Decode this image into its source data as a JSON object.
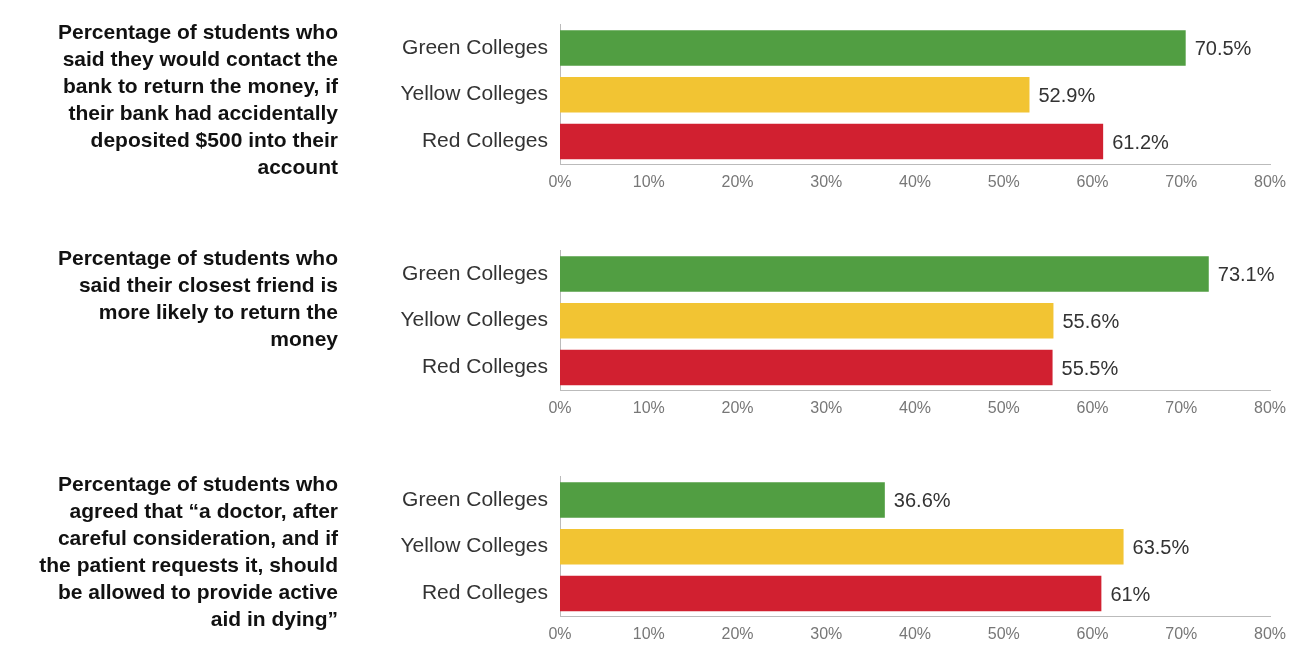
{
  "chart_data": [
    {
      "type": "bar",
      "orientation": "horizontal",
      "title": "Percentage of students who said they would contact the bank to return the money, if their bank had accidentally deposited $500 into their account",
      "categories": [
        "Green Colleges",
        "Yellow Colleges",
        "Red Colleges"
      ],
      "values": [
        70.5,
        52.9,
        61.2
      ],
      "colors": [
        "#519e42",
        "#f2c433",
        "#d12030"
      ],
      "value_labels": [
        "70.5%",
        "52.9%",
        "61.2%"
      ],
      "xlim": [
        0,
        80
      ],
      "xticks": [
        {
          "value": 0,
          "label": "0%"
        },
        {
          "value": 10,
          "label": "10%"
        },
        {
          "value": 20,
          "label": "20%"
        },
        {
          "value": 30,
          "label": "30%"
        },
        {
          "value": 40,
          "label": "40%"
        },
        {
          "value": 50,
          "label": "50%"
        },
        {
          "value": 60,
          "label": "60%"
        },
        {
          "value": 70,
          "label": "70%"
        },
        {
          "value": 80,
          "label": "80%"
        }
      ]
    },
    {
      "type": "bar",
      "orientation": "horizontal",
      "title": "Percentage of students who said their closest friend is more likely to return the money",
      "categories": [
        "Green Colleges",
        "Yellow Colleges",
        "Red Colleges"
      ],
      "values": [
        73.1,
        55.6,
        55.5
      ],
      "colors": [
        "#519e42",
        "#f2c433",
        "#d12030"
      ],
      "value_labels": [
        "73.1%",
        "55.6%",
        "55.5%"
      ],
      "xlim": [
        0,
        80
      ],
      "xticks": [
        {
          "value": 0,
          "label": "0%"
        },
        {
          "value": 10,
          "label": "10%"
        },
        {
          "value": 20,
          "label": "20%"
        },
        {
          "value": 30,
          "label": "30%"
        },
        {
          "value": 40,
          "label": "40%"
        },
        {
          "value": 50,
          "label": "50%"
        },
        {
          "value": 60,
          "label": "60%"
        },
        {
          "value": 70,
          "label": "70%"
        },
        {
          "value": 80,
          "label": "80%"
        }
      ]
    },
    {
      "type": "bar",
      "orientation": "horizontal",
      "title": "Percentage of students who agreed that “a doctor, after careful consideration, and if the patient requests it, should be allowed to provide active aid in dying”",
      "categories": [
        "Green Colleges",
        "Yellow Colleges",
        "Red Colleges"
      ],
      "values": [
        36.6,
        63.5,
        61
      ],
      "colors": [
        "#519e42",
        "#f2c433",
        "#d12030"
      ],
      "value_labels": [
        "36.6%",
        "63.5%",
        "61%"
      ],
      "xlim": [
        0,
        80
      ],
      "xticks": [
        {
          "value": 0,
          "label": "0%"
        },
        {
          "value": 10,
          "label": "10%"
        },
        {
          "value": 20,
          "label": "20%"
        },
        {
          "value": 30,
          "label": "30%"
        },
        {
          "value": 40,
          "label": "40%"
        },
        {
          "value": 50,
          "label": "50%"
        },
        {
          "value": 60,
          "label": "60%"
        },
        {
          "value": 70,
          "label": "70%"
        },
        {
          "value": 80,
          "label": "80%"
        }
      ]
    }
  ]
}
